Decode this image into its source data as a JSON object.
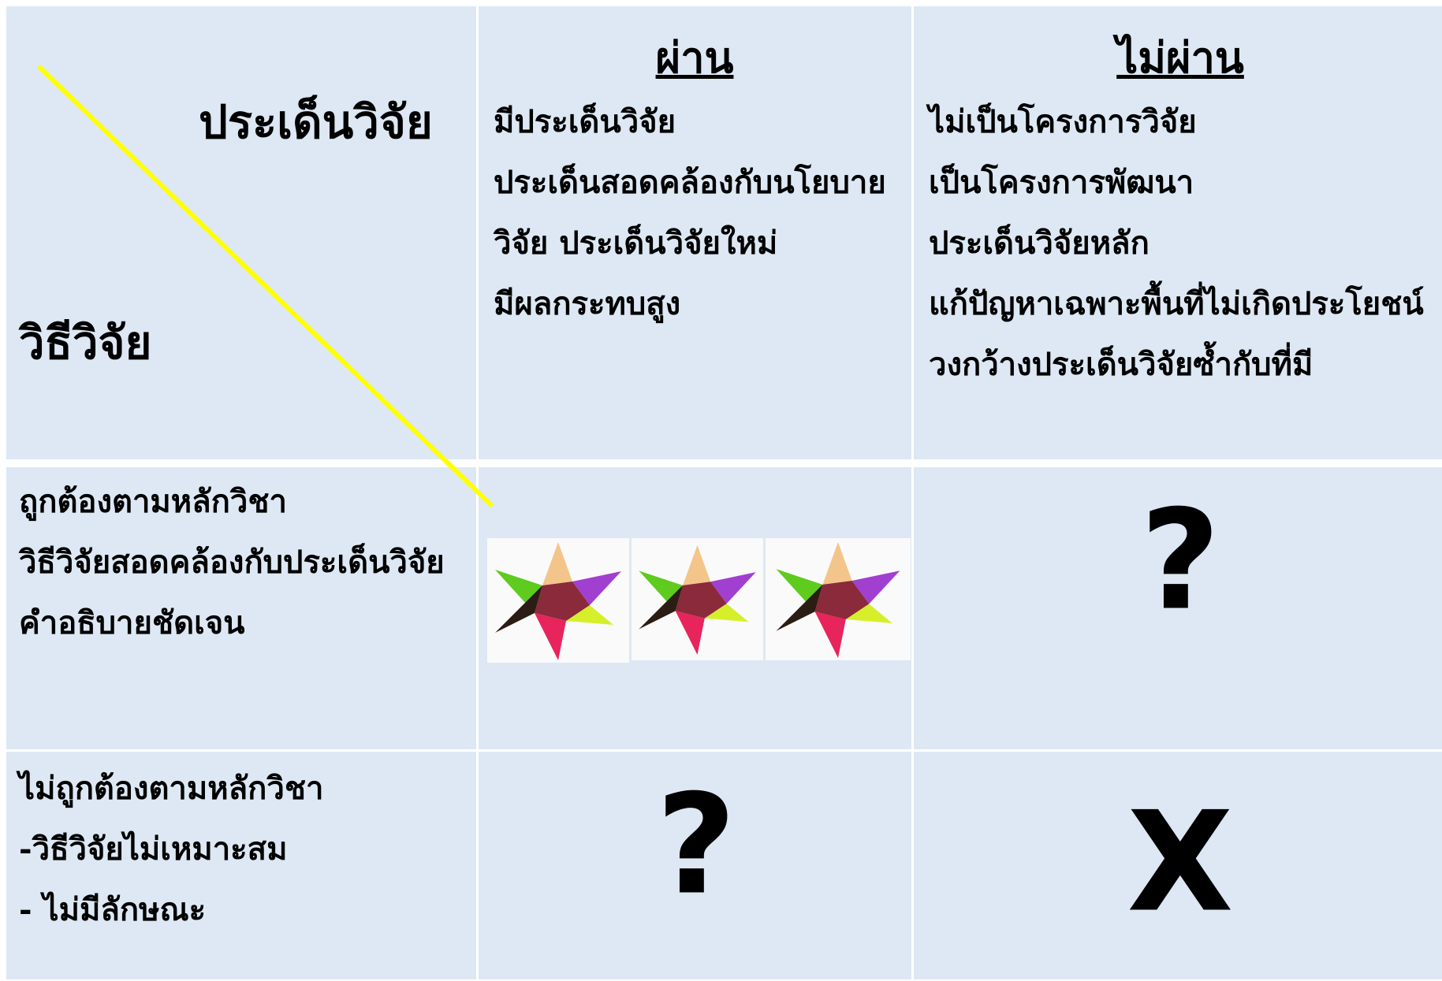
{
  "table": {
    "corner": {
      "top": "ประเด็นวิจัย",
      "bottom": "วิธีวิจัย"
    },
    "columns": [
      {
        "title": "ผ่าน",
        "items": [
          "มีประเด็นวิจัย",
          "ประเด็นสอดคล้องกับนโยบาย",
          "วิจัย ประเด็นวิจัยใหม่",
          "มีผลกระทบสูง"
        ]
      },
      {
        "title": "ไม่ผ่าน",
        "items": [
          "ไม่เป็นโครงการวิจัย",
          "เป็นโครงการพัฒนา",
          "ประเด็นวิจัยหลัก",
          "แก้ปัญหาเฉพาะพื้นที่ไม่เกิดประโยชน์",
          "วงกว้างประเด็นวิจัยซ้ำกับที่มี"
        ]
      }
    ],
    "rows": [
      {
        "items": [
          "ถูกต้องตามหลักวิชา",
          "วิธีวิจัยสอดคล้องกับประเด็นวิจัย",
          "คำอธิบายชัดเจน"
        ],
        "cells": [
          null,
          "?"
        ]
      },
      {
        "items": [
          "ไม่ถูกต้องตามหลักวิชา",
          "-วิธีวิจัยไม่เหมาะสม",
          "- ไม่มีลักษณะ"
        ],
        "cells": [
          "?",
          "X"
        ]
      }
    ]
  }
}
